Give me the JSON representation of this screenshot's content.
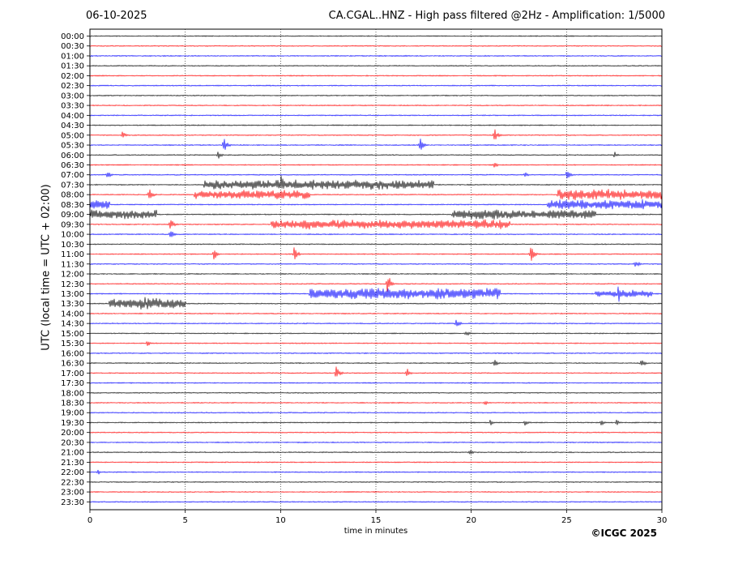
{
  "header": {
    "date": "06-10-2025",
    "title": "CA.CGAL..HNZ - High pass filtered @2Hz - Amplification: 1/5000"
  },
  "footer": {
    "credit": "©ICGC 2025"
  },
  "chart_data": {
    "type": "line",
    "xlabel": "time in minutes",
    "ylabel": "UTC (local time = UTC + 02:00)",
    "xlim": [
      0,
      30
    ],
    "x_ticks": [
      0,
      5,
      10,
      15,
      20,
      25,
      30
    ],
    "grid": "vertical dotted lines at 5-minute intervals",
    "y_tick_labels": [
      "00:00",
      "00:30",
      "01:00",
      "01:30",
      "02:00",
      "02:30",
      "03:00",
      "03:30",
      "04:00",
      "04:30",
      "05:00",
      "05:30",
      "06:00",
      "06:30",
      "07:00",
      "07:30",
      "08:00",
      "08:30",
      "09:00",
      "09:30",
      "10:00",
      "10:30",
      "11:00",
      "11:30",
      "12:00",
      "12:30",
      "13:00",
      "13:30",
      "14:00",
      "14:30",
      "15:00",
      "15:30",
      "16:00",
      "16:30",
      "17:00",
      "17:30",
      "18:00",
      "18:30",
      "19:00",
      "19:30",
      "20:00",
      "20:30",
      "21:00",
      "21:30",
      "22:00",
      "22:30",
      "23:00",
      "23:30"
    ],
    "trace_colors": [
      "#000000",
      "#ff0000",
      "#0000ff"
    ],
    "noisy_segments": [
      {
        "row": "07:30",
        "start": 6.0,
        "end": 18.0,
        "amp": 0.55
      },
      {
        "row": "08:00",
        "start": 5.5,
        "end": 11.5,
        "amp": 0.5
      },
      {
        "row": "08:00",
        "start": 24.5,
        "end": 30.0,
        "amp": 0.6
      },
      {
        "row": "08:30",
        "start": 0.0,
        "end": 1.0,
        "amp": 0.6
      },
      {
        "row": "08:30",
        "start": 24.0,
        "end": 30.0,
        "amp": 0.55
      },
      {
        "row": "09:00",
        "start": 0.0,
        "end": 3.5,
        "amp": 0.55
      },
      {
        "row": "09:00",
        "start": 19.0,
        "end": 26.5,
        "amp": 0.55
      },
      {
        "row": "09:30",
        "start": 9.5,
        "end": 22.0,
        "amp": 0.55
      },
      {
        "row": "13:00",
        "start": 11.5,
        "end": 21.5,
        "amp": 0.65
      },
      {
        "row": "13:00",
        "start": 26.5,
        "end": 29.5,
        "amp": 0.45
      },
      {
        "row": "13:30",
        "start": 1.0,
        "end": 5.0,
        "amp": 0.7
      }
    ],
    "events": [
      {
        "row": "05:00",
        "min": 1.7,
        "amp": 0.4
      },
      {
        "row": "05:00",
        "min": 21.2,
        "amp": 0.8
      },
      {
        "row": "05:30",
        "min": 7.0,
        "amp": 0.9
      },
      {
        "row": "05:30",
        "min": 17.3,
        "amp": 0.9
      },
      {
        "row": "06:00",
        "min": 6.7,
        "amp": 0.5
      },
      {
        "row": "06:00",
        "min": 27.5,
        "amp": 0.4
      },
      {
        "row": "06:30",
        "min": 21.2,
        "amp": 0.4
      },
      {
        "row": "07:00",
        "min": 0.9,
        "amp": 0.45
      },
      {
        "row": "07:00",
        "min": 22.8,
        "amp": 0.4
      },
      {
        "row": "07:00",
        "min": 25.0,
        "amp": 0.6
      },
      {
        "row": "07:30",
        "min": 10.0,
        "amp": 1.2
      },
      {
        "row": "08:00",
        "min": 3.1,
        "amp": 0.8
      },
      {
        "row": "09:30",
        "min": 4.2,
        "amp": 0.9
      },
      {
        "row": "10:00",
        "min": 4.2,
        "amp": 0.6
      },
      {
        "row": "11:00",
        "min": 6.5,
        "amp": 0.7
      },
      {
        "row": "11:00",
        "min": 10.7,
        "amp": 0.8
      },
      {
        "row": "11:00",
        "min": 23.1,
        "amp": 1.0
      },
      {
        "row": "11:30",
        "min": 28.6,
        "amp": 0.5
      },
      {
        "row": "12:30",
        "min": 15.6,
        "amp": 1.2
      },
      {
        "row": "13:00",
        "min": 27.7,
        "amp": 1.1
      },
      {
        "row": "14:30",
        "min": 19.2,
        "amp": 0.6
      },
      {
        "row": "15:00",
        "min": 19.7,
        "amp": 0.4
      },
      {
        "row": "15:30",
        "min": 3.0,
        "amp": 0.4
      },
      {
        "row": "16:30",
        "min": 21.2,
        "amp": 0.5
      },
      {
        "row": "16:30",
        "min": 28.9,
        "amp": 0.6
      },
      {
        "row": "17:00",
        "min": 12.9,
        "amp": 0.8
      },
      {
        "row": "17:00",
        "min": 16.6,
        "amp": 0.6
      },
      {
        "row": "18:30",
        "min": 20.7,
        "amp": 0.35
      },
      {
        "row": "19:30",
        "min": 21.0,
        "amp": 0.35
      },
      {
        "row": "19:30",
        "min": 22.8,
        "amp": 0.35
      },
      {
        "row": "19:30",
        "min": 26.8,
        "amp": 0.4
      },
      {
        "row": "19:30",
        "min": 27.6,
        "amp": 0.4
      },
      {
        "row": "21:00",
        "min": 19.9,
        "amp": 0.4
      },
      {
        "row": "22:00",
        "min": 0.4,
        "amp": 0.35
      }
    ]
  }
}
